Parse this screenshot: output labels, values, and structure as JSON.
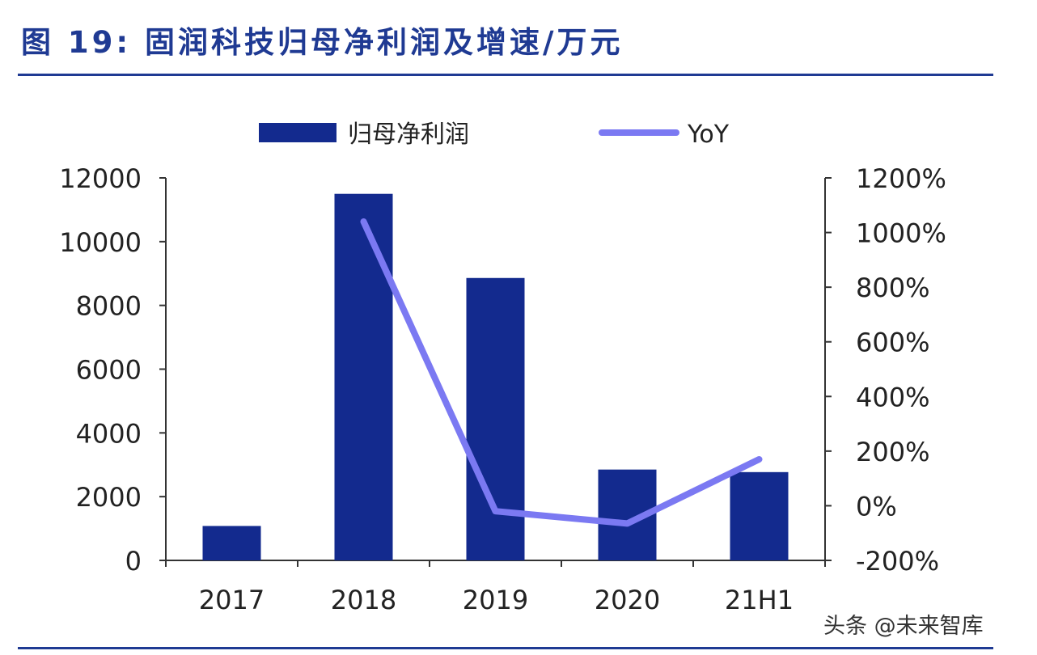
{
  "figure_title": "图 19: 固润科技归母净利润及增速/万元",
  "watermark": "头条 @未来智库",
  "colors": {
    "bar": "#132a8e",
    "line": "#7b79f2",
    "title": "#1f3a93",
    "axis": "#333333"
  },
  "chart_data": {
    "type": "bar",
    "categories": [
      "2017",
      "2018",
      "2019",
      "2020",
      "21H1"
    ],
    "series": [
      {
        "name": "归母净利润",
        "type": "bar",
        "axis": "left",
        "values": [
          1080,
          11500,
          8860,
          2850,
          2770
        ]
      },
      {
        "name": "YoY",
        "type": "line",
        "axis": "right",
        "values": [
          null,
          1040,
          -20,
          -65,
          170
        ]
      }
    ],
    "y_left": {
      "min": 0,
      "max": 12000,
      "ticks": [
        "0",
        "2000",
        "4000",
        "6000",
        "8000",
        "10000",
        "12000"
      ]
    },
    "y_right": {
      "min": -200,
      "max": 1200,
      "ticks": [
        "-200%",
        "0%",
        "200%",
        "400%",
        "600%",
        "800%",
        "1000%",
        "1200%"
      ]
    },
    "legend": {
      "placement": "top"
    },
    "grid": false
  }
}
